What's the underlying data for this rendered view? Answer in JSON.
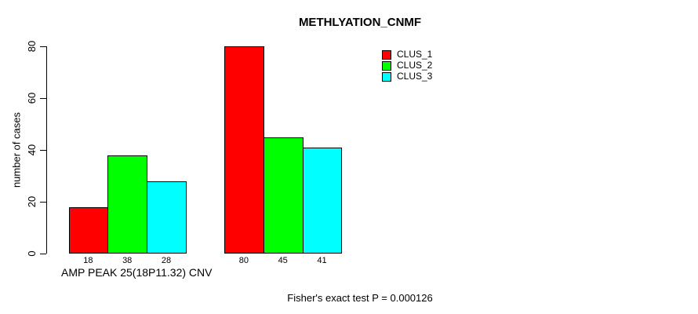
{
  "chart_data": {
    "type": "bar",
    "title": "METHLYATION_CNMF",
    "ylabel": "number of cases",
    "xlabel": "AMP PEAK 25(18P11.32) CNV",
    "annotation": "Fisher's exact test P = 0.000126",
    "ylim": [
      0,
      80
    ],
    "yticks": [
      0,
      20,
      40,
      60,
      80
    ],
    "grid": false,
    "n_groups": 2,
    "bar_value_labels_shown": true,
    "legend": {
      "position": "top-right"
    },
    "series": [
      {
        "name": "CLUS_1",
        "color": "#ff0000",
        "values": [
          18,
          80
        ]
      },
      {
        "name": "CLUS_2",
        "color": "#00ff00",
        "values": [
          38,
          45
        ]
      },
      {
        "name": "CLUS_3",
        "color": "#00ffff",
        "values": [
          28,
          41
        ]
      }
    ],
    "colors": {
      "background": "#ffffff",
      "text": "#000000",
      "axis": "#000000"
    }
  }
}
